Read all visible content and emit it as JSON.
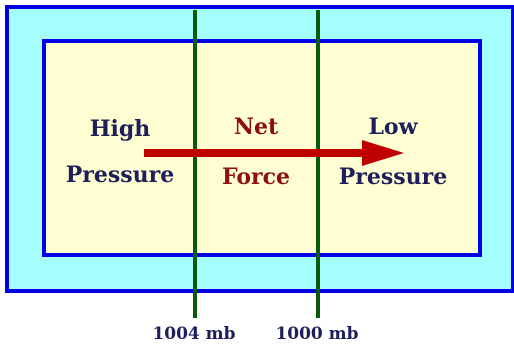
{
  "labels": {
    "high_line1": "High",
    "high_line2": "Pressure",
    "net_line1": "Net",
    "net_line2": "Force",
    "low_line1": "Low",
    "low_line2": "Pressure"
  },
  "isobars": [
    "1004 mb",
    "1000 mb"
  ],
  "colors": {
    "outer_fill": "#a6ffff",
    "inner_fill": "#fffdd2",
    "border": "#0000e6",
    "isobar_line": "#0b5a0b",
    "arrow": "#c00000",
    "label_dark": "#1e1e5a",
    "label_red": "#8b0f0f"
  }
}
